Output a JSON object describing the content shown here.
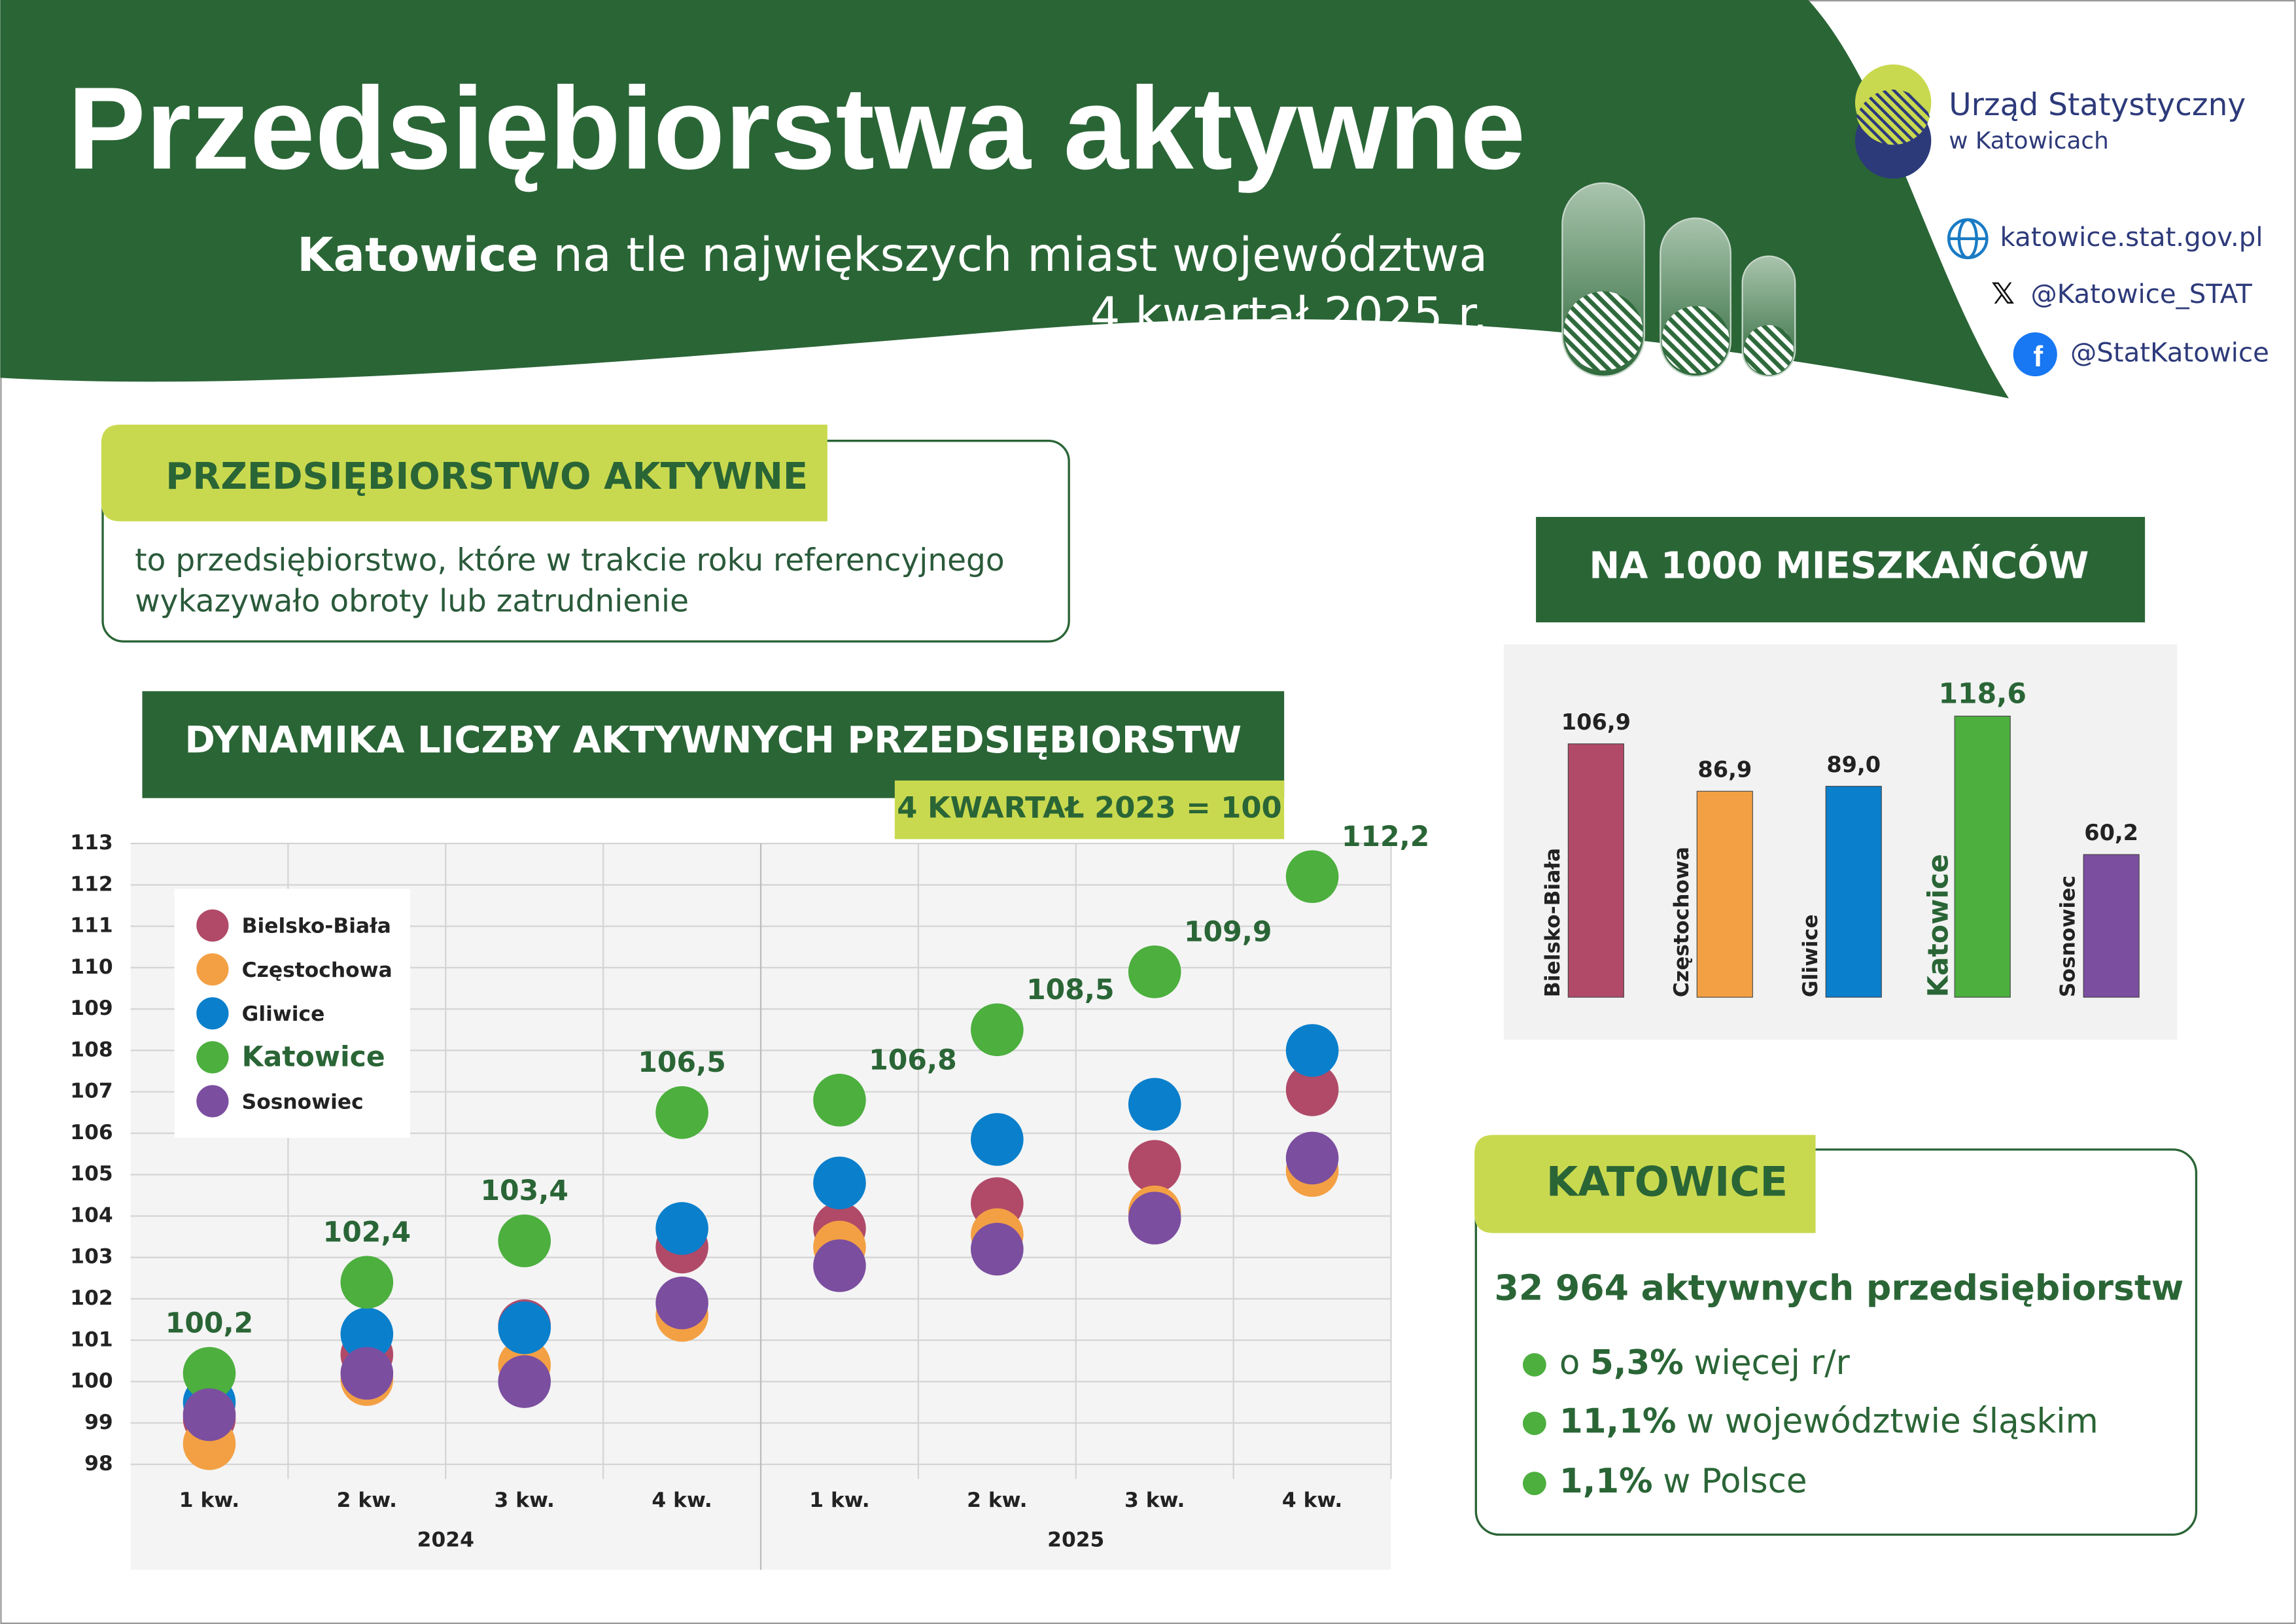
{
  "header": {
    "title": "Przedsiębiorstwa aktywne",
    "subtitle_city": "Katowice",
    "subtitle_rest": "na tle największych miast województwa",
    "period": "4 kwartał 2025 r."
  },
  "logo": {
    "line1": "Urząd Statystyczny",
    "line2": "w Katowicach"
  },
  "contacts": {
    "website": "katowice.stat.gov.pl",
    "x": "@Katowice_STAT",
    "facebook": "@StatKatowice"
  },
  "definition": {
    "title": "PRZEDSIĘBIORSTWO AKTYWNE",
    "lines": [
      "to przedsiębiorstwo, które w trakcie roku referencyjnego",
      "wykazywało obroty lub zatrudnienie"
    ]
  },
  "chart_data": [
    {
      "type": "dot",
      "title": "DYNAMIKA LICZBY AKTYWNYCH PRZEDSIĘBIORSTW",
      "subtitle": "4 KWARTAŁ 2023 = 100",
      "categories": [
        "1 kw.",
        "2 kw.",
        "3 kw.",
        "4 kw.",
        "1 kw.",
        "2 kw.",
        "3 kw.",
        "4 kw."
      ],
      "groups": [
        "2024",
        "2025"
      ],
      "ylim": [
        98,
        113
      ],
      "yticks": [
        98,
        99,
        100,
        101,
        102,
        103,
        104,
        105,
        106,
        107,
        108,
        109,
        110,
        111,
        112,
        113
      ],
      "grid": true,
      "series": [
        {
          "name": "Bielsko-Biała",
          "color": "#b04a68",
          "values": [
            99.1,
            100.65,
            101.35,
            103.25,
            103.7,
            104.3,
            105.2,
            107.05
          ]
        },
        {
          "name": "Częstochowa",
          "color": "#f3a044",
          "values": [
            98.5,
            100.05,
            100.4,
            101.6,
            103.25,
            103.55,
            104.1,
            105.1
          ]
        },
        {
          "name": "Gliwice",
          "color": "#0a7fcc",
          "values": [
            99.5,
            101.15,
            101.3,
            103.7,
            104.8,
            105.85,
            106.7,
            108.0
          ]
        },
        {
          "name": "Katowice",
          "color": "#4caf3e",
          "values": [
            100.2,
            102.4,
            103.4,
            106.5,
            106.8,
            108.5,
            109.9,
            112.2
          ],
          "value_labels": [
            "100,2",
            "102,4",
            "103,4",
            "106,5",
            "106,8",
            "108,5",
            "109,9",
            "112,2"
          ]
        },
        {
          "name": "Sosnowiec",
          "color": "#7b4ea0",
          "values": [
            99.2,
            100.2,
            100.0,
            101.9,
            102.8,
            103.2,
            103.95,
            105.4
          ]
        }
      ]
    },
    {
      "type": "bar",
      "title": "NA 1000 MIESZKAŃCÓW",
      "categories": [
        "Bielsko-Biała",
        "Częstochowa",
        "Gliwice",
        "Katowice",
        "Sosnowiec"
      ],
      "values": [
        106.9,
        86.9,
        89.0,
        118.6,
        60.2
      ],
      "value_labels": [
        "106,9",
        "86,9",
        "89,0",
        "118,6",
        "60,2"
      ],
      "colors": [
        "#b04a68",
        "#f3a044",
        "#0a7fcc",
        "#4caf3e",
        "#7b4ea0"
      ]
    }
  ],
  "summary": {
    "title": "KATOWICE",
    "headline": "32 964 aktywnych przedsiębiorstw",
    "bullets": [
      {
        "prefix": "o",
        "value": "5,3%",
        "text": "więcej r/r"
      },
      {
        "value": "11,1%",
        "text": "w województwie śląskim"
      },
      {
        "value": "1,1%",
        "text": "w Polsce"
      }
    ]
  }
}
